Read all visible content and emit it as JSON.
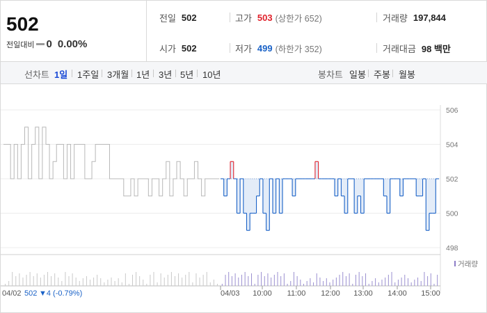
{
  "summary": {
    "price": "502",
    "change_label": "전일대비",
    "change_value": "0",
    "change_pct": "0.00%",
    "prev_close_label": "전일",
    "prev_close": "502",
    "open_label": "시가",
    "open": "502",
    "high_label": "고가",
    "high": "503",
    "upper_limit": "(상한가 652)",
    "low_label": "저가",
    "low": "499",
    "lower_limit": "(하한가 352)",
    "volume_label": "거래량",
    "volume": "197,844",
    "amount_label": "거래대금",
    "amount": "98 백만"
  },
  "tabs": {
    "line_label": "선차트",
    "line_tabs": [
      "1일",
      "1주일",
      "3개월",
      "1년",
      "3년",
      "5년",
      "10년"
    ],
    "candle_label": "봉차트",
    "candle_tabs": [
      "일봉",
      "주봉",
      "월봉"
    ]
  },
  "chart_data": {
    "type": "line",
    "ylim": [
      498,
      506
    ],
    "yticks": [
      506,
      504,
      502,
      500,
      498
    ],
    "prev_day_label": "04/02",
    "prev_day_close": "502",
    "prev_day_change": "▼4 (-0.79%)",
    "today_label": "04/03",
    "time_ticks": [
      "10:00",
      "11:00",
      "12:00",
      "13:00",
      "14:00",
      "15:00"
    ],
    "volume_legend": "거래량",
    "colors": {
      "up": "#e0212b",
      "down": "#1a62c7",
      "prev": "#b8b8b8",
      "fill": "#e3ecf8"
    },
    "prev_series": [
      504,
      504,
      502,
      504,
      502,
      504,
      505,
      502,
      504,
      505,
      502,
      505,
      504,
      502,
      503,
      504,
      504,
      502,
      504,
      502,
      504,
      504,
      504,
      502,
      502,
      503,
      504,
      504,
      504,
      504,
      502,
      502,
      502,
      502,
      501,
      501,
      502,
      501,
      502,
      502,
      502,
      501,
      502,
      502,
      501,
      502,
      503,
      501,
      502,
      503,
      502,
      501,
      502,
      502,
      503,
      502,
      501,
      502,
      502,
      502,
      502
    ],
    "today_series": [
      502,
      501,
      502,
      503,
      502,
      500,
      502,
      500,
      499,
      500,
      500,
      501,
      502,
      500,
      499,
      502,
      500,
      502,
      500,
      502,
      502,
      502,
      501,
      502,
      502,
      502,
      502,
      502,
      502,
      503,
      502,
      502,
      502,
      502,
      502,
      501,
      502,
      501,
      500,
      502,
      502,
      500,
      501,
      500,
      502,
      502,
      502,
      502,
      502,
      502,
      501,
      500,
      502,
      502,
      502,
      501,
      502,
      502,
      502,
      502,
      501,
      501,
      502,
      499,
      500,
      500,
      502
    ]
  }
}
